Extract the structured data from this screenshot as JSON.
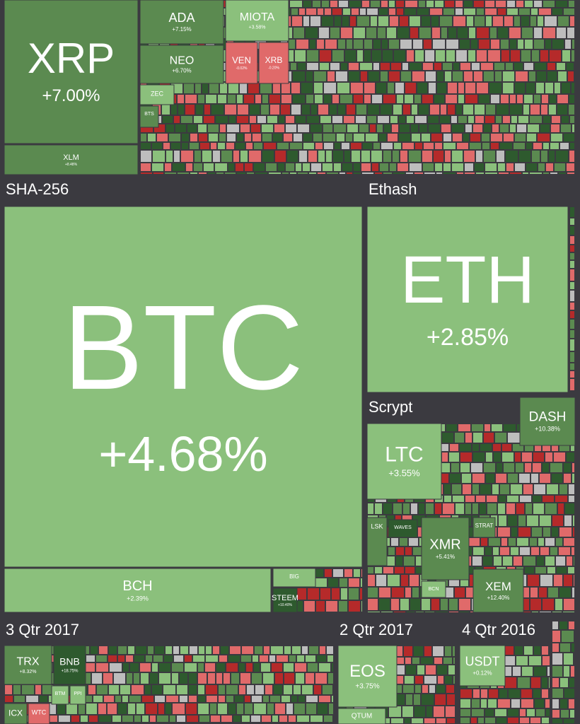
{
  "headers": [
    "SHA-256",
    "Ethash",
    "Scrypt",
    "3 Qtr 2017",
    "2 Qtr 2017",
    "4 Qtr 2016"
  ],
  "tiles": [
    {
      "symbol": "XRP",
      "change": "+7.00%"
    },
    {
      "symbol": "XLM",
      "change": "+8.48%"
    },
    {
      "symbol": "ADA",
      "change": "+7.15%"
    },
    {
      "symbol": "NEO",
      "change": "+6.70%"
    },
    {
      "symbol": "MIOTA",
      "change": "+3.58%"
    },
    {
      "symbol": "VEN",
      "change": "-0.02%"
    },
    {
      "symbol": "XRB",
      "change": "-0.20%"
    },
    {
      "symbol": "ZEC"
    },
    {
      "symbol": "BTS"
    },
    {
      "symbol": "BTC",
      "change": "+4.68%"
    },
    {
      "symbol": "BCH",
      "change": "+2.39%"
    },
    {
      "symbol": "BIG"
    },
    {
      "symbol": "STEEM",
      "change": "+10.40%"
    },
    {
      "symbol": "ETH",
      "change": "+2.85%"
    },
    {
      "symbol": "DASH",
      "change": "+10.38%"
    },
    {
      "symbol": "LTC",
      "change": "+3.55%"
    },
    {
      "symbol": "LSK"
    },
    {
      "symbol": "WAVES"
    },
    {
      "symbol": "XMR",
      "change": "+5.41%"
    },
    {
      "symbol": "BCN"
    },
    {
      "symbol": "STRAT"
    },
    {
      "symbol": "XEM",
      "change": "+12.40%"
    },
    {
      "symbol": "TRX",
      "change": "+8.32%"
    },
    {
      "symbol": "BNB",
      "change": "+18.75%"
    },
    {
      "symbol": "BTM"
    },
    {
      "symbol": "PPI"
    },
    {
      "symbol": "ICX"
    },
    {
      "symbol": "WTC"
    },
    {
      "symbol": "EOS",
      "change": "+3.75%"
    },
    {
      "symbol": "QTUM"
    },
    {
      "symbol": "USDT",
      "change": "+0.12%"
    }
  ]
}
